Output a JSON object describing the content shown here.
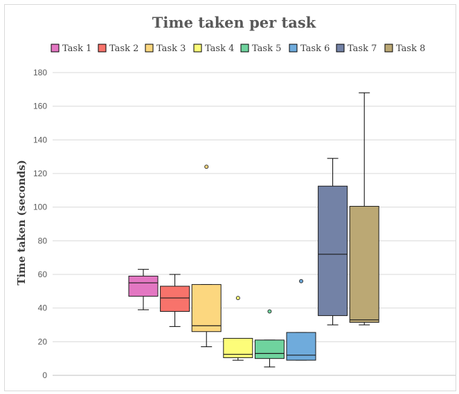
{
  "chart_data": {
    "type": "box",
    "title": "Time taken per task",
    "xlabel": "",
    "ylabel": "Time taken (seconds)",
    "ylim": [
      0,
      180
    ],
    "yticks": [
      0,
      20,
      40,
      60,
      80,
      100,
      120,
      140,
      160,
      180
    ],
    "grid": true,
    "legend_position": "top",
    "series": [
      {
        "name": "Task 1",
        "color": "#e377c2",
        "min": 39,
        "q1": 47,
        "median": 55,
        "q3": 59,
        "max": 63,
        "outliers": []
      },
      {
        "name": "Task 2",
        "color": "#f8736b",
        "min": 29,
        "q1": 38,
        "median": 46,
        "q3": 53,
        "max": 60,
        "outliers": []
      },
      {
        "name": "Task 3",
        "color": "#fcd77f",
        "min": 17,
        "q1": 26,
        "median": 29.5,
        "q3": 54,
        "max": 54,
        "outliers": [
          124
        ]
      },
      {
        "name": "Task 4",
        "color": "#fdfd79",
        "min": 9,
        "q1": 10.5,
        "median": 12.5,
        "q3": 22,
        "max": 22,
        "outliers": [
          46
        ]
      },
      {
        "name": "Task 5",
        "color": "#6fd39e",
        "min": 5,
        "q1": 10,
        "median": 13,
        "q3": 21,
        "max": 21,
        "outliers": [
          38
        ]
      },
      {
        "name": "Task 6",
        "color": "#6fabdc",
        "min": 9,
        "q1": 9,
        "median": 12,
        "q3": 25.5,
        "max": 25.5,
        "outliers": [
          56
        ]
      },
      {
        "name": "Task 7",
        "color": "#7382a6",
        "min": 30,
        "q1": 35.5,
        "median": 72,
        "q3": 112.5,
        "max": 129,
        "outliers": []
      },
      {
        "name": "Task 8",
        "color": "#bba874",
        "min": 30,
        "q1": 31.5,
        "median": 33,
        "q3": 100.5,
        "max": 168,
        "outliers": []
      }
    ]
  }
}
